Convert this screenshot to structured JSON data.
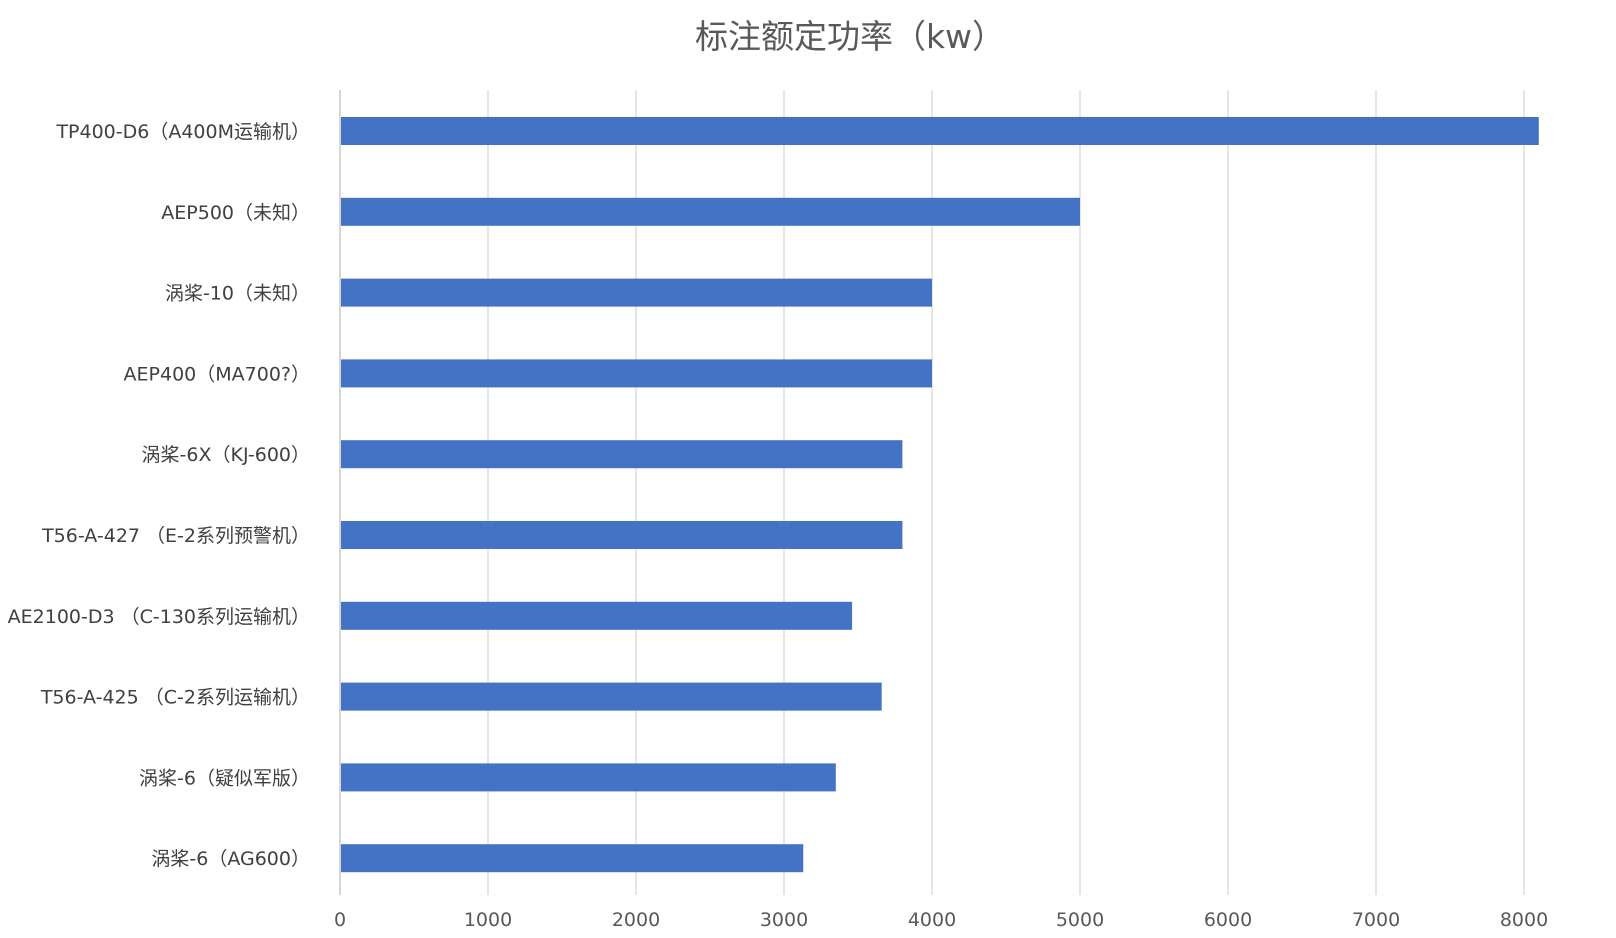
{
  "chart_data": {
    "type": "bar",
    "orientation": "horizontal",
    "title": "标注额定功率（kw）",
    "xlabel": "",
    "ylabel": "",
    "categories": [
      "TP400-D6（A400M运输机）",
      "AEP500（未知）",
      "涡桨-10（未知）",
      "AEP400（MA700?）",
      "涡桨-6X（KJ-600）",
      "T56-A-427 （E-2系列预警机）",
      "AE2100-D3 （C-130系列运输机）",
      "T56-A-425 （C-2系列运输机）",
      "涡桨-6（疑似军版）",
      "涡桨-6（AG600）"
    ],
    "values": [
      8100,
      5000,
      4000,
      4000,
      3800,
      3800,
      3460,
      3660,
      3350,
      3130
    ],
    "xlim": [
      0,
      8000
    ],
    "x_ticks": [
      "0",
      "1000",
      "2000",
      "3000",
      "4000",
      "5000",
      "6000",
      "7000",
      "8000"
    ],
    "grid": true,
    "legend": "none",
    "bar_color": "#4472C4"
  }
}
